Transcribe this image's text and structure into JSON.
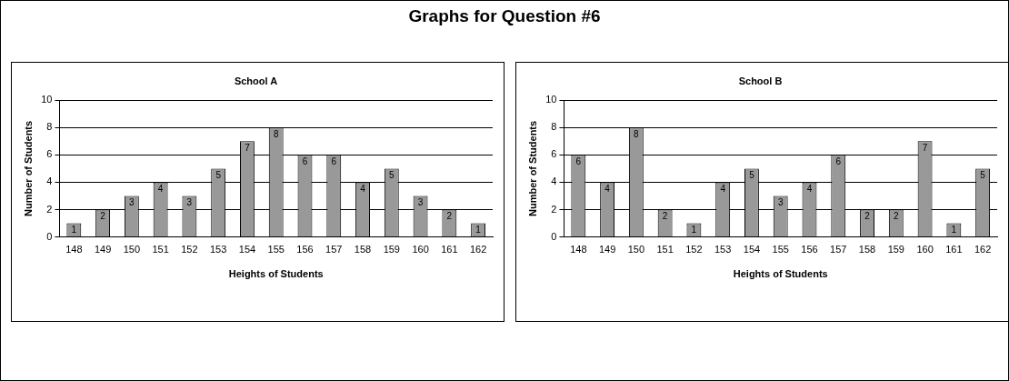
{
  "chart_data": [
    {
      "type": "other",
      "title": "Graphs for Question #6"
    },
    {
      "type": "bar",
      "title": "School A",
      "xlabel": "Heights of Students",
      "ylabel": "Number of Students",
      "categories": [
        "148",
        "149",
        "150",
        "151",
        "152",
        "153",
        "154",
        "155",
        "156",
        "157",
        "158",
        "159",
        "160",
        "161",
        "162"
      ],
      "values": [
        1,
        2,
        3,
        4,
        3,
        5,
        7,
        8,
        6,
        6,
        4,
        5,
        3,
        2,
        1
      ],
      "color": "#999999",
      "ylim": [
        0,
        10
      ],
      "yticks": [
        0,
        2,
        4,
        6,
        8,
        10
      ],
      "grid": "y",
      "data_labels": true
    },
    {
      "type": "bar",
      "title": "School B",
      "xlabel": "Heights of Students",
      "ylabel": "Number of Students",
      "categories": [
        "148",
        "149",
        "150",
        "151",
        "152",
        "153",
        "154",
        "155",
        "156",
        "157",
        "158",
        "159",
        "160",
        "161",
        "162"
      ],
      "values": [
        6,
        4,
        8,
        2,
        1,
        4,
        5,
        3,
        4,
        6,
        2,
        2,
        7,
        1,
        5
      ],
      "color": "#999999",
      "ylim": [
        0,
        10
      ],
      "yticks": [
        0,
        2,
        4,
        6,
        8,
        10
      ],
      "grid": "y",
      "data_labels": true
    }
  ]
}
